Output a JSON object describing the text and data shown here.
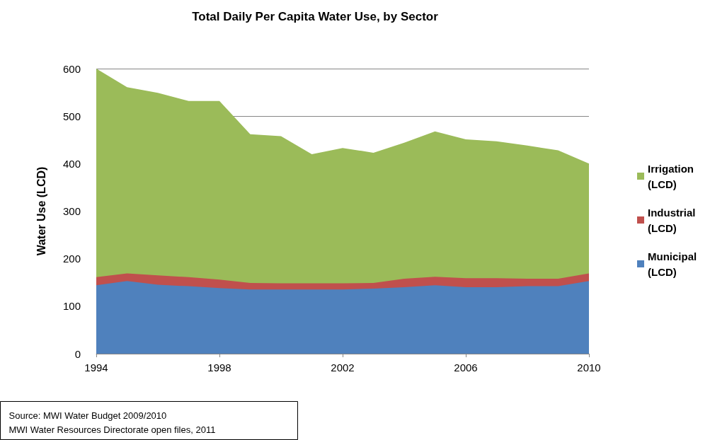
{
  "chart_data": {
    "type": "area",
    "stacked": true,
    "title": "Total Daily Per Capita Water Use, by Sector",
    "ylabel": "Water Use (LCD)",
    "x": [
      1994,
      1995,
      1996,
      1997,
      1998,
      1999,
      2000,
      2001,
      2002,
      2003,
      2004,
      2005,
      2006,
      2007,
      2008,
      2009,
      2010
    ],
    "series": [
      {
        "name": "Municipal (LCD)",
        "color": "#4f81bd",
        "values": [
          144,
          153,
          145,
          142,
          138,
          135,
          135,
          135,
          135,
          137,
          140,
          144,
          140,
          140,
          142,
          142,
          153
        ]
      },
      {
        "name": "Industrial (LCD)",
        "color": "#c0504d",
        "values": [
          17,
          16,
          20,
          19,
          18,
          14,
          13,
          13,
          13,
          12,
          18,
          18,
          19,
          19,
          16,
          16,
          16
        ]
      },
      {
        "name": "Irrigation (LCD)",
        "color": "#9bbb59",
        "values": [
          439,
          392,
          384,
          371,
          376,
          313,
          310,
          272,
          285,
          274,
          286,
          306,
          292,
          288,
          280,
          270,
          231
        ]
      }
    ],
    "xlim": [
      1994,
      2010
    ],
    "xticks": [
      1994,
      1998,
      2002,
      2006,
      2010
    ],
    "ylim": [
      0,
      600
    ],
    "yticks": [
      0,
      100,
      200,
      300,
      400,
      500,
      600
    ],
    "grid": "y",
    "legend": "right",
    "annotations": [
      "Source: MWI Water Budget 2009/2010\nMWI Water Resources Directorate open files, 2011"
    ]
  }
}
